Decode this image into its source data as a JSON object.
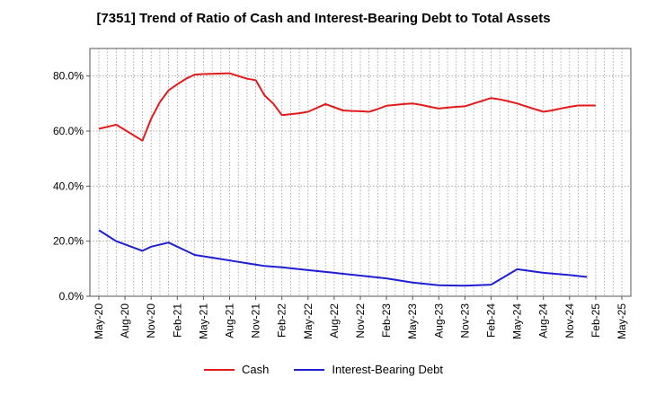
{
  "chart_data": {
    "type": "line",
    "title": "[7351]  Trend of Ratio of Cash and Interest-Bearing Debt to Total Assets",
    "xlabel": "",
    "ylabel": "",
    "ylim": [
      0,
      90
    ],
    "y_ticks": [
      0,
      20,
      40,
      60,
      80
    ],
    "y_tick_labels": [
      "0.0%",
      "20.0%",
      "40.0%",
      "60.0%",
      "80.0%"
    ],
    "x_tick_labels": [
      "May-20",
      "Aug-20",
      "Nov-20",
      "Feb-21",
      "May-21",
      "Aug-21",
      "Nov-21",
      "Feb-22",
      "May-22",
      "Aug-22",
      "Nov-22",
      "Feb-23",
      "May-23",
      "Aug-23",
      "Nov-23",
      "Feb-24",
      "May-24",
      "Aug-24",
      "Nov-24",
      "Feb-25",
      "May-25"
    ],
    "grid": true,
    "legend_position": "bottom",
    "series": [
      {
        "name": "Cash",
        "color": "#e31a1c",
        "x": [
          0,
          2,
          5,
          6,
          7,
          8,
          9,
          10,
          11,
          12,
          15,
          16,
          17,
          18,
          19,
          20,
          21,
          23,
          24,
          26,
          28,
          29,
          30,
          31,
          32,
          33,
          34,
          35,
          36,
          37,
          38,
          39,
          40,
          41,
          42,
          43,
          44,
          45,
          46,
          47,
          48,
          49,
          50,
          51,
          52,
          53,
          54,
          55,
          56,
          57
        ],
        "values": [
          60.8,
          62.3,
          56.5,
          64.5,
          70.5,
          74.8,
          77.0,
          79.0,
          80.5,
          80.7,
          81.0,
          80.0,
          79.0,
          78.5,
          73.0,
          70.0,
          65.8,
          66.5,
          67.0,
          69.8,
          67.5,
          67.3,
          67.2,
          67.0,
          68.0,
          69.2,
          69.5,
          69.8,
          70.0,
          69.5,
          68.8,
          68.2,
          68.5,
          68.8,
          69.0,
          70.0,
          71.0,
          72.0,
          71.5,
          70.8,
          70.0,
          69.0,
          68.0,
          67.0,
          67.5,
          68.2,
          68.8,
          69.3,
          69.3,
          69.3
        ]
      },
      {
        "name": "Interest-Bearing Debt",
        "color": "#1f1fd1",
        "x": [
          0,
          2,
          5,
          6,
          8,
          9,
          10,
          11,
          12,
          15,
          16,
          17,
          18,
          19,
          21,
          24,
          27,
          30,
          33,
          36,
          39,
          42,
          45,
          48,
          51,
          54,
          56
        ],
        "values": [
          24.0,
          20.0,
          16.5,
          18.0,
          19.5,
          18.0,
          16.5,
          15.0,
          14.5,
          13.0,
          12.5,
          12.0,
          11.5,
          11.0,
          10.5,
          9.5,
          8.5,
          7.5,
          6.5,
          5.0,
          4.0,
          3.8,
          4.2,
          9.8,
          8.5,
          7.7,
          7.0
        ]
      }
    ]
  }
}
